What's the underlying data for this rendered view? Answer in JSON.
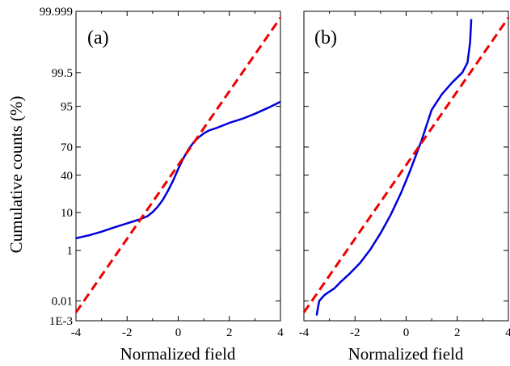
{
  "chart_data": [
    {
      "type": "line",
      "panel_label": "(a)",
      "xlabel": "Normalized field",
      "ylabel": "Cumulative counts (%)",
      "xlim": [
        -4,
        4
      ],
      "xticks": [
        -4,
        -2,
        0,
        2,
        4
      ],
      "xtick_labels": [
        "-4",
        "-2",
        "0",
        "2",
        "4"
      ],
      "yscale": "normal-probability (z-score)",
      "ylim_z": [
        -4.265,
        4.265
      ],
      "yticks": [
        {
          "label": "99.999",
          "z": 4.265
        },
        {
          "label": "99.5",
          "z": 2.576
        },
        {
          "label": "95",
          "z": 1.645
        },
        {
          "label": "70",
          "z": 0.524
        },
        {
          "label": "40",
          "z": -0.253
        },
        {
          "label": "10",
          "z": -1.282
        },
        {
          "label": "1",
          "z": -2.326
        },
        {
          "label": "0.01",
          "z": -3.719
        },
        {
          "label": "1E-3",
          "z": -4.265
        }
      ],
      "series": [
        {
          "style": "solid",
          "color": "#0000dd",
          "x": [
            -4.0,
            -3.5,
            -3.0,
            -2.5,
            -2.0,
            -1.5,
            -1.2,
            -1.0,
            -0.8,
            -0.6,
            -0.4,
            -0.2,
            0.0,
            0.2,
            0.4,
            0.6,
            0.8,
            1.0,
            1.2,
            1.5,
            2.0,
            2.5,
            3.0,
            3.5,
            4.0
          ],
          "z": [
            -1.99,
            -1.91,
            -1.81,
            -1.69,
            -1.58,
            -1.47,
            -1.38,
            -1.27,
            -1.12,
            -0.93,
            -0.68,
            -0.4,
            -0.08,
            0.21,
            0.46,
            0.65,
            0.79,
            0.9,
            0.98,
            1.05,
            1.19,
            1.3,
            1.44,
            1.6,
            1.77
          ]
        },
        {
          "style": "dashed",
          "color": "#ee0000",
          "x": [
            -4.0,
            4.0
          ],
          "z": [
            -4.035,
            4.09
          ]
        }
      ]
    },
    {
      "type": "line",
      "panel_label": "(b)",
      "xlabel": "Normalized field",
      "xlim": [
        -4,
        4
      ],
      "xticks": [
        -4,
        -2,
        0,
        2,
        4
      ],
      "xtick_labels": [
        "-4",
        "-2",
        "0",
        "2",
        "4"
      ],
      "yscale": "normal-probability (z-score)",
      "ylim_z": [
        -4.265,
        4.265
      ],
      "series": [
        {
          "style": "solid",
          "color": "#0000dd",
          "x": [
            -3.5,
            -3.45,
            -3.4,
            -3.2,
            -3.0,
            -2.8,
            -2.6,
            -2.2,
            -1.8,
            -1.4,
            -1.0,
            -0.6,
            -0.2,
            0.0,
            0.2,
            0.6,
            1.0,
            1.4,
            1.8,
            2.2,
            2.4,
            2.5,
            2.55
          ],
          "z": [
            -4.12,
            -3.9,
            -3.72,
            -3.56,
            -3.46,
            -3.37,
            -3.22,
            -2.96,
            -2.67,
            -2.3,
            -1.85,
            -1.34,
            -0.74,
            -0.4,
            -0.05,
            0.7,
            1.55,
            1.98,
            2.3,
            2.58,
            2.85,
            3.4,
            4.05
          ]
        },
        {
          "style": "dashed",
          "color": "#ee0000",
          "x": [
            -4.0,
            4.0
          ],
          "z": [
            -4.035,
            4.09
          ]
        }
      ]
    }
  ]
}
